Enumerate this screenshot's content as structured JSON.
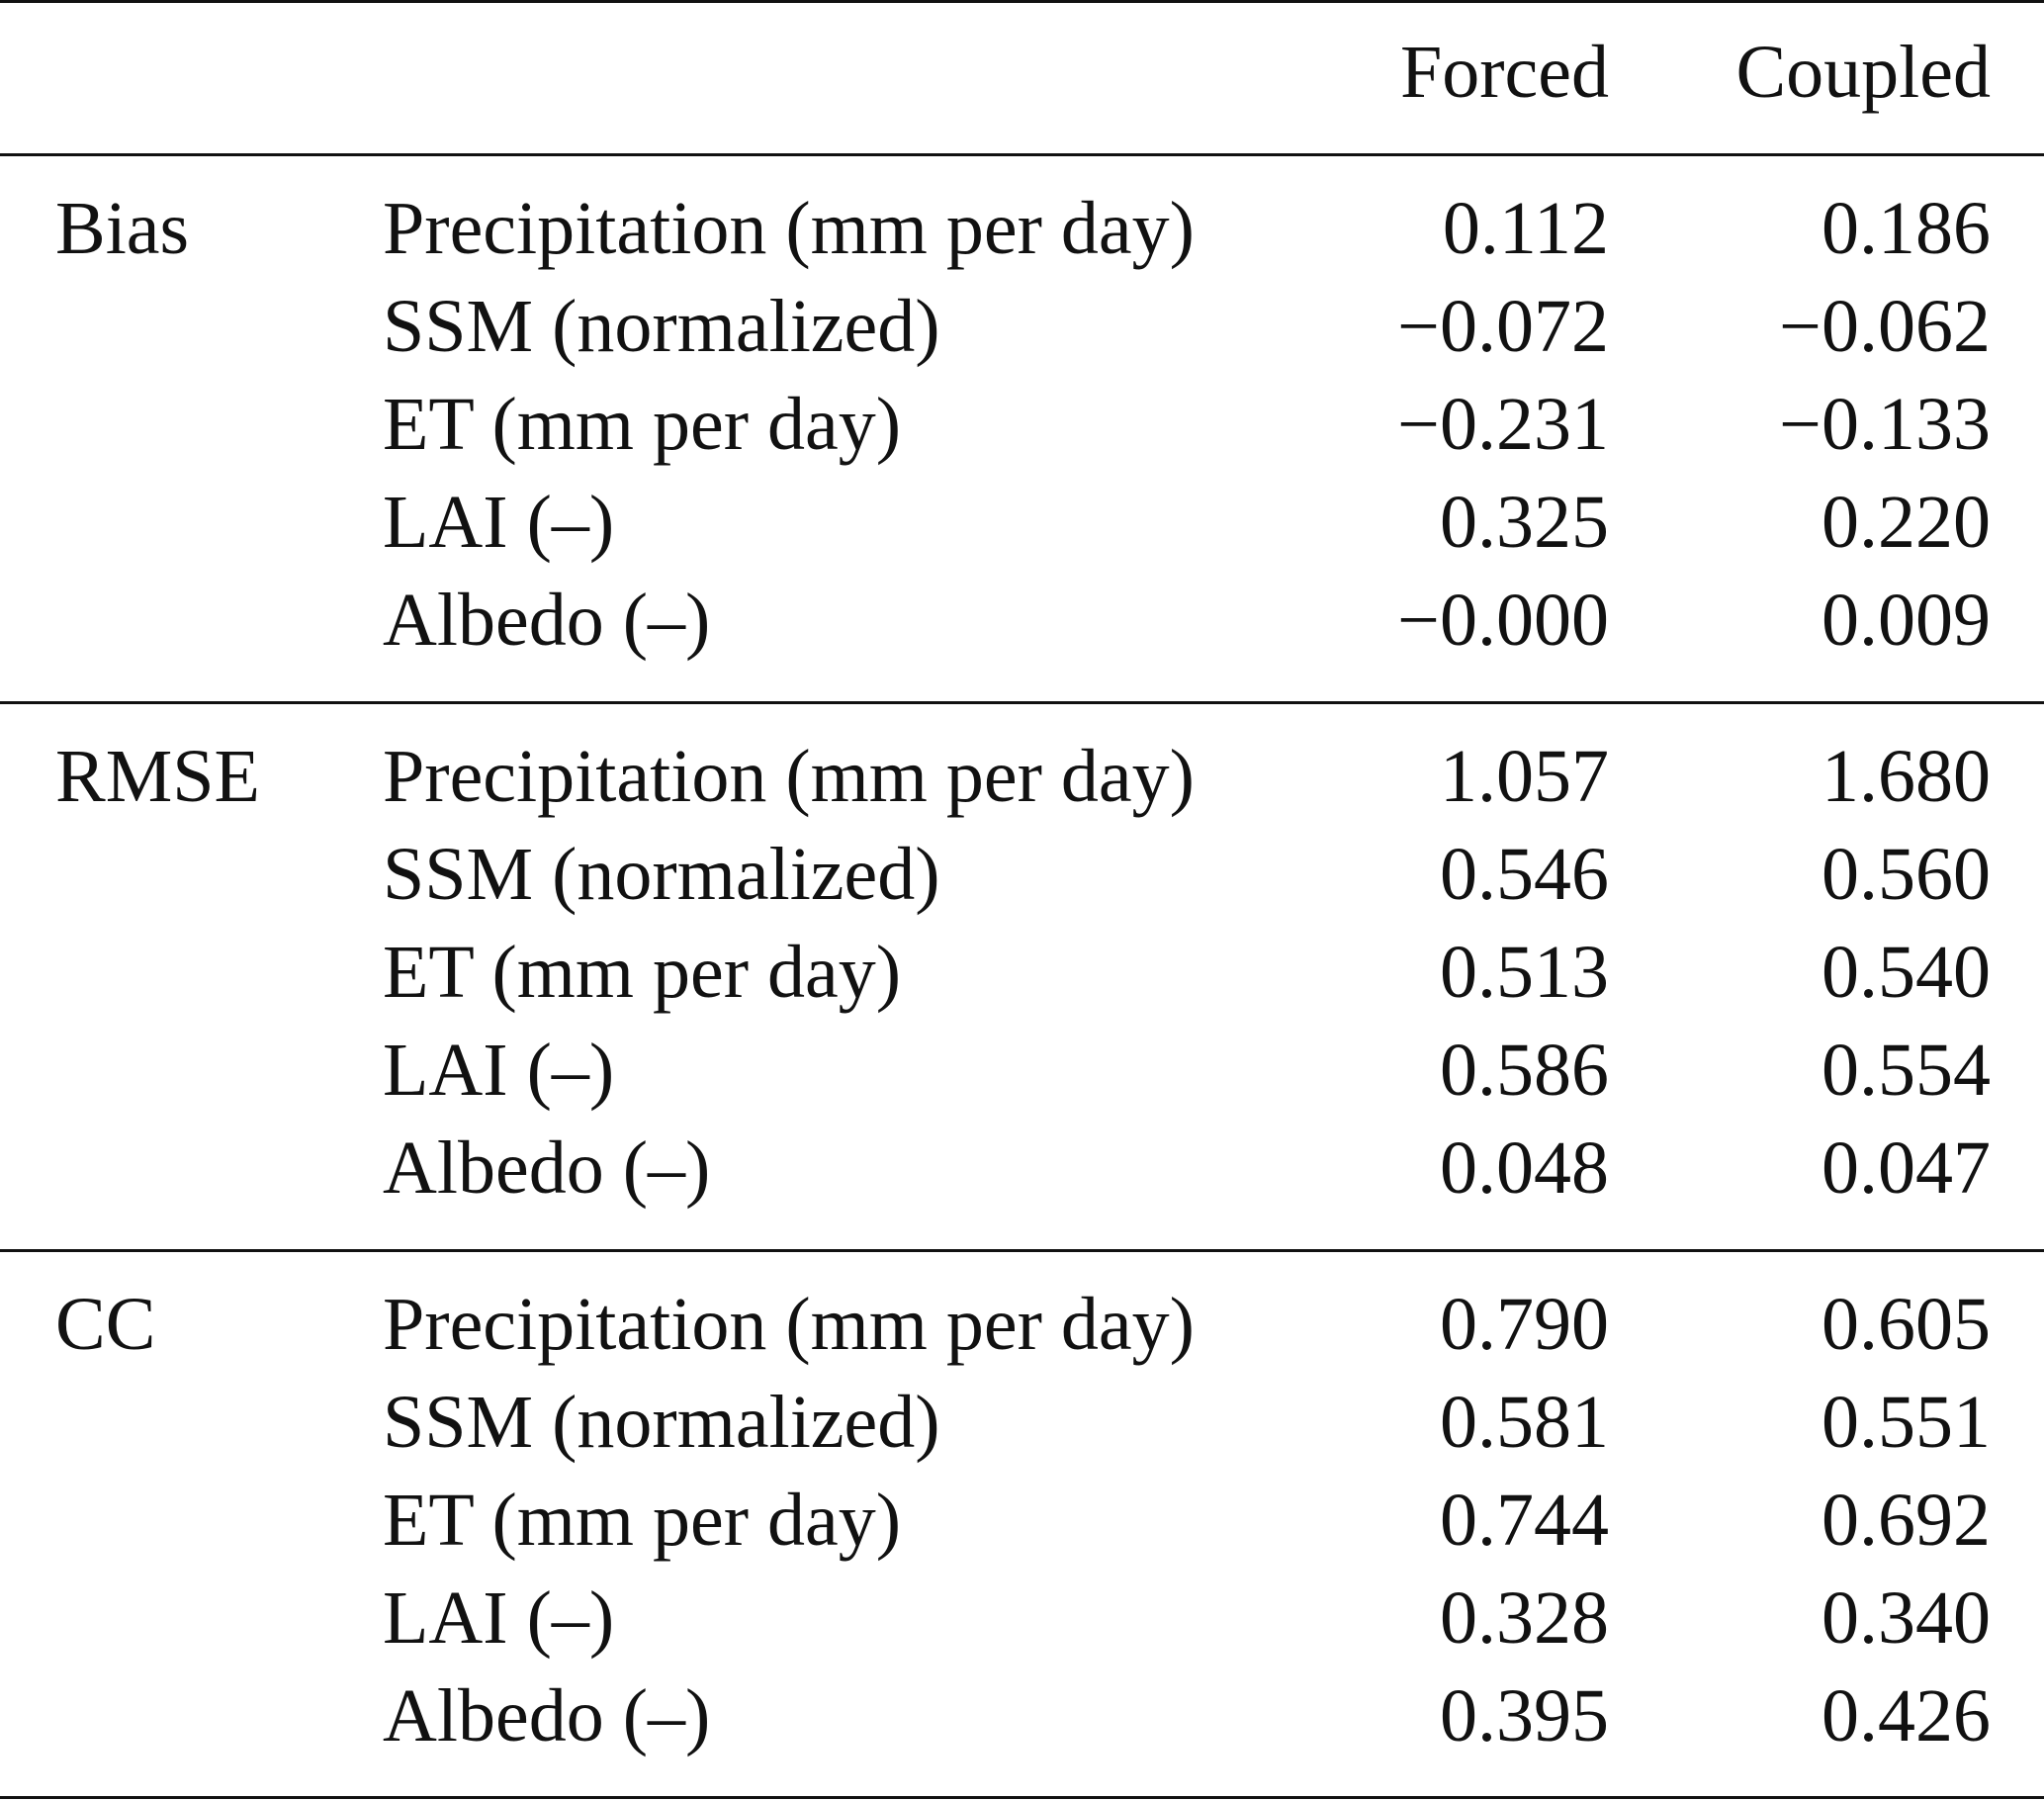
{
  "header": {
    "col_forced": "Forced",
    "col_coupled": "Coupled"
  },
  "groups": [
    {
      "label": "Bias",
      "rows": [
        {
          "label": "Precipitation (mm per day)",
          "forced": "0.112",
          "coupled": "0.186"
        },
        {
          "label": "SSM (normalized)",
          "forced": "−0.072",
          "coupled": "−0.062"
        },
        {
          "label": "ET (mm per day)",
          "forced": "−0.231",
          "coupled": "−0.133"
        },
        {
          "label": "LAI (–)",
          "forced": "0.325",
          "coupled": "0.220"
        },
        {
          "label": "Albedo (–)",
          "forced": "−0.000",
          "coupled": "0.009"
        }
      ]
    },
    {
      "label": "RMSE",
      "rows": [
        {
          "label": "Precipitation (mm per day)",
          "forced": "1.057",
          "coupled": "1.680"
        },
        {
          "label": "SSM (normalized)",
          "forced": "0.546",
          "coupled": "0.560"
        },
        {
          "label": "ET (mm per day)",
          "forced": "0.513",
          "coupled": "0.540"
        },
        {
          "label": "LAI (–)",
          "forced": "0.586",
          "coupled": "0.554"
        },
        {
          "label": "Albedo (–)",
          "forced": "0.048",
          "coupled": "0.047"
        }
      ]
    },
    {
      "label": "CC",
      "rows": [
        {
          "label": "Precipitation (mm per day)",
          "forced": "0.790",
          "coupled": "0.605"
        },
        {
          "label": "SSM (normalized)",
          "forced": "0.581",
          "coupled": "0.551"
        },
        {
          "label": "ET (mm per day)",
          "forced": "0.744",
          "coupled": "0.692"
        },
        {
          "label": "LAI (–)",
          "forced": "0.328",
          "coupled": "0.340"
        },
        {
          "label": "Albedo (–)",
          "forced": "0.395",
          "coupled": "0.426"
        }
      ]
    }
  ]
}
